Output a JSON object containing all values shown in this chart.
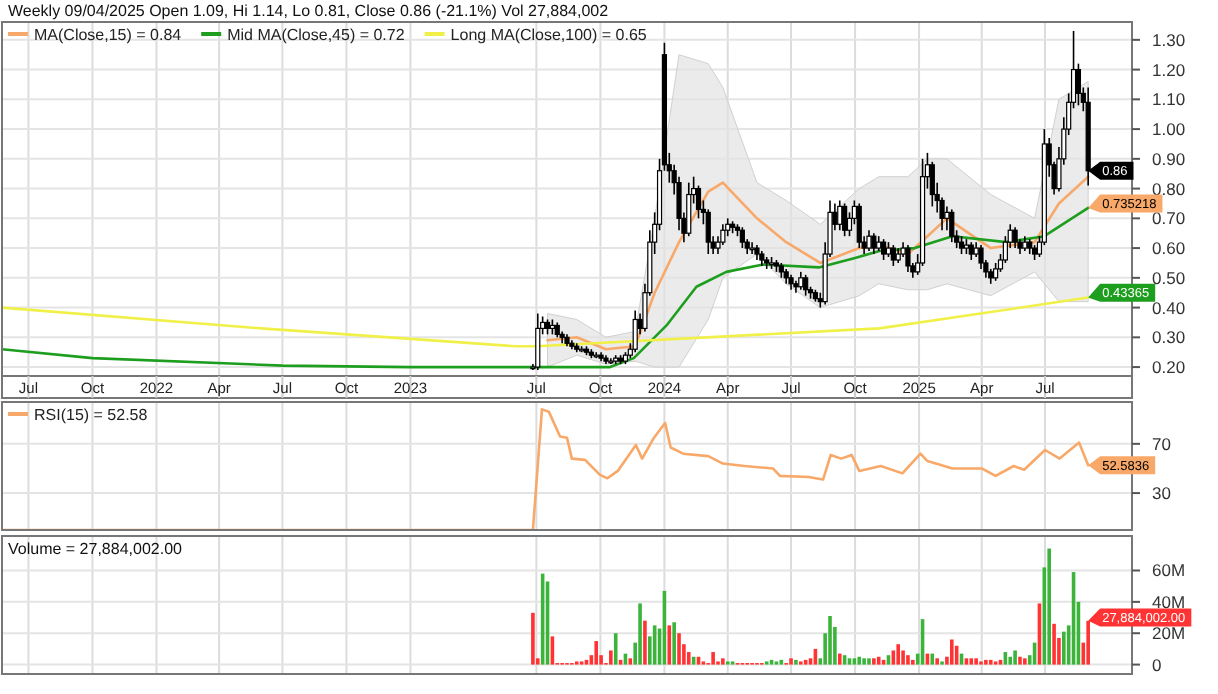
{
  "chart_data": [
    {
      "type": "candlestick",
      "title": "Weekly 09/04/2025 Open 1.09, Hi 1.14, Lo 0.81, Close 0.86 (-21.1%) Vol 27,884,002",
      "x": [
        "2023-06-26",
        "2023-07-03",
        "2023-07-10",
        "2023-07-17",
        "2023-07-24",
        "2023-07-31",
        "2023-08-07",
        "2023-08-14",
        "2023-08-21",
        "2023-08-28",
        "2023-09-04",
        "2023-09-11",
        "2023-09-18",
        "2023-09-25",
        "2023-10-02",
        "2023-10-09",
        "2023-10-16",
        "2023-10-23",
        "2023-10-30",
        "2023-11-06",
        "2023-11-13",
        "2023-11-20",
        "2023-11-27",
        "2023-12-04",
        "2023-12-11",
        "2023-12-18",
        "2023-12-25",
        "2024-01-01",
        "2024-01-08",
        "2024-01-15",
        "2024-01-22",
        "2024-01-29",
        "2024-02-05",
        "2024-02-12",
        "2024-02-19",
        "2024-02-26",
        "2024-03-04",
        "2024-03-11",
        "2024-03-18",
        "2024-03-25",
        "2024-04-01",
        "2024-04-08",
        "2024-04-15",
        "2024-04-22",
        "2024-04-29",
        "2024-05-06",
        "2024-05-13",
        "2024-05-20",
        "2024-05-27",
        "2024-06-03",
        "2024-06-10",
        "2024-06-17",
        "2024-06-24",
        "2024-07-01",
        "2024-07-08",
        "2024-07-15",
        "2024-07-22",
        "2024-07-29",
        "2024-08-05",
        "2024-08-12",
        "2024-08-19",
        "2024-08-26",
        "2024-09-02",
        "2024-09-09",
        "2024-09-16",
        "2024-09-23",
        "2024-09-30",
        "2024-10-07",
        "2024-10-14",
        "2024-10-21",
        "2024-10-28",
        "2024-11-04",
        "2024-11-11",
        "2024-11-18",
        "2024-11-25",
        "2024-12-02",
        "2024-12-09",
        "2024-12-16",
        "2024-12-23",
        "2024-12-30",
        "2025-01-06",
        "2025-01-13",
        "2025-01-20",
        "2025-01-27",
        "2025-02-03",
        "2025-02-10",
        "2025-02-17",
        "2025-02-24",
        "2025-03-03",
        "2025-03-10",
        "2025-03-17",
        "2025-03-24",
        "2025-03-31",
        "2025-04-07",
        "2025-04-14",
        "2025-04-21",
        "2025-04-28",
        "2025-05-05",
        "2025-05-12",
        "2025-05-19",
        "2025-05-26",
        "2025-06-02",
        "2025-06-09",
        "2025-06-16",
        "2025-06-23",
        "2025-06-30",
        "2025-07-07",
        "2025-07-14",
        "2025-07-21",
        "2025-07-28",
        "2025-08-04",
        "2025-08-11",
        "2025-08-18",
        "2025-08-25",
        "2025-09-01"
      ],
      "ohlc": [
        [
          0.2,
          0.21,
          0.19,
          0.2
        ],
        [
          0.2,
          0.38,
          0.19,
          0.33
        ],
        [
          0.33,
          0.37,
          0.31,
          0.35
        ],
        [
          0.35,
          0.36,
          0.31,
          0.33
        ],
        [
          0.33,
          0.36,
          0.31,
          0.34
        ],
        [
          0.34,
          0.35,
          0.3,
          0.31
        ],
        [
          0.31,
          0.32,
          0.28,
          0.3
        ],
        [
          0.3,
          0.31,
          0.27,
          0.28
        ],
        [
          0.28,
          0.29,
          0.26,
          0.27
        ],
        [
          0.27,
          0.28,
          0.25,
          0.26
        ],
        [
          0.26,
          0.27,
          0.25,
          0.26
        ],
        [
          0.26,
          0.27,
          0.24,
          0.25
        ],
        [
          0.25,
          0.26,
          0.23,
          0.24
        ],
        [
          0.24,
          0.25,
          0.23,
          0.24
        ],
        [
          0.24,
          0.25,
          0.22,
          0.23
        ],
        [
          0.23,
          0.24,
          0.21,
          0.22
        ],
        [
          0.22,
          0.23,
          0.21,
          0.22
        ],
        [
          0.22,
          0.24,
          0.21,
          0.23
        ],
        [
          0.23,
          0.24,
          0.21,
          0.22
        ],
        [
          0.22,
          0.25,
          0.21,
          0.24
        ],
        [
          0.24,
          0.28,
          0.23,
          0.26
        ],
        [
          0.26,
          0.39,
          0.25,
          0.36
        ],
        [
          0.36,
          0.38,
          0.31,
          0.33
        ],
        [
          0.33,
          0.48,
          0.32,
          0.45
        ],
        [
          0.45,
          0.66,
          0.44,
          0.62
        ],
        [
          0.62,
          0.72,
          0.58,
          0.68
        ],
        [
          0.68,
          0.9,
          0.66,
          0.86
        ],
        [
          1.25,
          1.29,
          0.86,
          0.88
        ],
        [
          0.88,
          0.92,
          0.82,
          0.86
        ],
        [
          0.86,
          0.88,
          0.78,
          0.82
        ],
        [
          0.82,
          0.84,
          0.66,
          0.7
        ],
        [
          0.7,
          0.72,
          0.62,
          0.65
        ],
        [
          0.65,
          0.82,
          0.64,
          0.78
        ],
        [
          0.78,
          0.84,
          0.75,
          0.8
        ],
        [
          0.8,
          0.81,
          0.7,
          0.73
        ],
        [
          0.73,
          0.76,
          0.68,
          0.72
        ],
        [
          0.72,
          0.73,
          0.58,
          0.62
        ],
        [
          0.62,
          0.64,
          0.58,
          0.6
        ],
        [
          0.6,
          0.64,
          0.58,
          0.62
        ],
        [
          0.62,
          0.68,
          0.61,
          0.66
        ],
        [
          0.66,
          0.7,
          0.64,
          0.68
        ],
        [
          0.68,
          0.69,
          0.65,
          0.67
        ],
        [
          0.67,
          0.68,
          0.64,
          0.66
        ],
        [
          0.66,
          0.67,
          0.6,
          0.62
        ],
        [
          0.62,
          0.63,
          0.58,
          0.6
        ],
        [
          0.6,
          0.62,
          0.58,
          0.6
        ],
        [
          0.6,
          0.61,
          0.56,
          0.58
        ],
        [
          0.58,
          0.59,
          0.54,
          0.56
        ],
        [
          0.56,
          0.57,
          0.53,
          0.55
        ],
        [
          0.55,
          0.57,
          0.53,
          0.55
        ],
        [
          0.55,
          0.56,
          0.52,
          0.54
        ],
        [
          0.54,
          0.55,
          0.5,
          0.52
        ],
        [
          0.52,
          0.53,
          0.48,
          0.5
        ],
        [
          0.5,
          0.51,
          0.46,
          0.48
        ],
        [
          0.48,
          0.49,
          0.45,
          0.47
        ],
        [
          0.47,
          0.52,
          0.46,
          0.5
        ],
        [
          0.5,
          0.51,
          0.44,
          0.46
        ],
        [
          0.46,
          0.47,
          0.43,
          0.45
        ],
        [
          0.45,
          0.46,
          0.42,
          0.43
        ],
        [
          0.43,
          0.45,
          0.4,
          0.42
        ],
        [
          0.42,
          0.62,
          0.41,
          0.58
        ],
        [
          0.58,
          0.76,
          0.57,
          0.72
        ],
        [
          0.72,
          0.75,
          0.66,
          0.68
        ],
        [
          0.68,
          0.76,
          0.66,
          0.74
        ],
        [
          0.74,
          0.75,
          0.64,
          0.66
        ],
        [
          0.66,
          0.72,
          0.64,
          0.7
        ],
        [
          0.7,
          0.76,
          0.68,
          0.74
        ],
        [
          0.74,
          0.75,
          0.6,
          0.62
        ],
        [
          0.62,
          0.64,
          0.58,
          0.6
        ],
        [
          0.6,
          0.66,
          0.59,
          0.64
        ],
        [
          0.64,
          0.65,
          0.58,
          0.6
        ],
        [
          0.6,
          0.64,
          0.59,
          0.62
        ],
        [
          0.62,
          0.63,
          0.56,
          0.58
        ],
        [
          0.58,
          0.62,
          0.57,
          0.6
        ],
        [
          0.6,
          0.61,
          0.54,
          0.56
        ],
        [
          0.56,
          0.6,
          0.55,
          0.58
        ],
        [
          0.58,
          0.62,
          0.57,
          0.6
        ],
        [
          0.6,
          0.61,
          0.52,
          0.54
        ],
        [
          0.54,
          0.55,
          0.5,
          0.52
        ],
        [
          0.52,
          0.58,
          0.51,
          0.55
        ],
        [
          0.55,
          0.9,
          0.54,
          0.84
        ],
        [
          0.84,
          0.92,
          0.8,
          0.88
        ],
        [
          0.88,
          0.89,
          0.74,
          0.78
        ],
        [
          0.78,
          0.82,
          0.72,
          0.76
        ],
        [
          0.76,
          0.77,
          0.66,
          0.7
        ],
        [
          0.7,
          0.74,
          0.66,
          0.72
        ],
        [
          0.72,
          0.73,
          0.62,
          0.64
        ],
        [
          0.64,
          0.66,
          0.6,
          0.62
        ],
        [
          0.62,
          0.64,
          0.58,
          0.6
        ],
        [
          0.6,
          0.63,
          0.58,
          0.61
        ],
        [
          0.61,
          0.62,
          0.56,
          0.58
        ],
        [
          0.58,
          0.62,
          0.57,
          0.6
        ],
        [
          0.6,
          0.61,
          0.53,
          0.55
        ],
        [
          0.55,
          0.56,
          0.5,
          0.52
        ],
        [
          0.52,
          0.53,
          0.48,
          0.5
        ],
        [
          0.5,
          0.55,
          0.49,
          0.53
        ],
        [
          0.53,
          0.58,
          0.52,
          0.56
        ],
        [
          0.56,
          0.64,
          0.55,
          0.62
        ],
        [
          0.62,
          0.68,
          0.6,
          0.66
        ],
        [
          0.66,
          0.67,
          0.6,
          0.62
        ],
        [
          0.62,
          0.63,
          0.58,
          0.6
        ],
        [
          0.6,
          0.64,
          0.59,
          0.62
        ],
        [
          0.62,
          0.63,
          0.58,
          0.6
        ],
        [
          0.6,
          0.61,
          0.56,
          0.58
        ],
        [
          0.58,
          0.64,
          0.57,
          0.62
        ],
        [
          0.62,
          1.0,
          0.61,
          0.95
        ],
        [
          0.95,
          0.97,
          0.84,
          0.88
        ],
        [
          0.88,
          0.89,
          0.78,
          0.8
        ],
        [
          0.8,
          0.94,
          0.79,
          0.9
        ],
        [
          0.9,
          1.04,
          0.88,
          1.0
        ],
        [
          1.0,
          1.12,
          0.98,
          1.09
        ],
        [
          1.09,
          1.33,
          1.07,
          1.2
        ],
        [
          1.2,
          1.22,
          1.08,
          1.12
        ],
        [
          1.12,
          1.14,
          1.06,
          1.09
        ],
        [
          1.09,
          1.14,
          0.81,
          0.86
        ]
      ],
      "series": [
        {
          "type": "line",
          "name": "MA(Close,15) = 0.84",
          "color": "#f8a868",
          "x": [
            "2023-07-17",
            "2023-08-28",
            "2023-10-09",
            "2023-11-20",
            "2023-12-18",
            "2024-01-22",
            "2024-03-04",
            "2024-03-25",
            "2024-05-13",
            "2024-06-24",
            "2024-08-12",
            "2024-10-07",
            "2024-11-04",
            "2024-12-16",
            "2025-01-13",
            "2025-02-10",
            "2025-04-14",
            "2025-06-16",
            "2025-07-21",
            "2025-09-01"
          ],
          "values": [
            0.29,
            0.3,
            0.26,
            0.27,
            0.45,
            0.62,
            0.79,
            0.82,
            0.7,
            0.62,
            0.55,
            0.6,
            0.61,
            0.58,
            0.64,
            0.7,
            0.6,
            0.62,
            0.75,
            0.84
          ],
          "upper": [
            0.38,
            0.36,
            0.3,
            0.32,
            0.7,
            1.25,
            1.22,
            1.14,
            0.82,
            0.76,
            0.68,
            0.8,
            0.84,
            0.84,
            0.9,
            0.9,
            0.78,
            0.7,
            1.1,
            1.16
          ],
          "lower": [
            0.2,
            0.24,
            0.21,
            0.22,
            0.2,
            0.2,
            0.36,
            0.5,
            0.58,
            0.48,
            0.4,
            0.44,
            0.48,
            0.46,
            0.46,
            0.48,
            0.44,
            0.52,
            0.42,
            0.42
          ]
        },
        {
          "type": "line",
          "name": "Mid MA(Close,45) = 0.72",
          "color": "#1e9e1e",
          "x": [
            "2021-05-24",
            "2021-10-01",
            "2022-07-01",
            "2023-01-01",
            "2023-10-15",
            "2023-11-18",
            "2024-01-04",
            "2024-02-16",
            "2024-03-30",
            "2024-05-22",
            "2024-08-10",
            "2024-10-01",
            "2024-11-05",
            "2024-12-26",
            "2025-02-18",
            "2025-05-06",
            "2025-06-30",
            "2025-09-01"
          ],
          "values": [
            0.26,
            0.23,
            0.205,
            0.2,
            0.2,
            0.23,
            0.34,
            0.47,
            0.52,
            0.545,
            0.535,
            0.567,
            0.59,
            0.6,
            0.64,
            0.62,
            0.64,
            0.735
          ]
        },
        {
          "type": "line",
          "name": "Long MA(Close,100) = 0.65",
          "color": "#f0f048",
          "x": [
            "2021-05-24",
            "2022-06-01",
            "2023-06-01",
            "2023-07-01",
            "2024-11-05",
            "2025-03-01",
            "2025-09-01"
          ],
          "values": [
            0.4,
            0.33,
            0.27,
            0.27,
            0.33,
            0.37,
            0.43365
          ]
        }
      ],
      "xlim": [
        "2021-05-24",
        "2025-11-03"
      ],
      "xticks": [
        {
          "value": "2021-07-01",
          "label": "Jul"
        },
        {
          "value": "2021-10-01",
          "label": "Oct"
        },
        {
          "value": "2022-01-01",
          "label": "2022"
        },
        {
          "value": "2022-04-01",
          "label": "Apr"
        },
        {
          "value": "2022-07-01",
          "label": "Jul"
        },
        {
          "value": "2022-10-01",
          "label": "Oct"
        },
        {
          "value": "2023-01-01",
          "label": "2023"
        },
        {
          "value": "2023-07-01",
          "label": "Jul"
        },
        {
          "value": "2023-10-01",
          "label": "Oct"
        },
        {
          "value": "2024-01-01",
          "label": "2024"
        },
        {
          "value": "2024-04-01",
          "label": "Apr"
        },
        {
          "value": "2024-07-01",
          "label": "Jul"
        },
        {
          "value": "2024-10-01",
          "label": "Oct"
        },
        {
          "value": "2025-01-01",
          "label": "2025"
        },
        {
          "value": "2025-04-01",
          "label": "Apr"
        },
        {
          "value": "2025-07-01",
          "label": "Jul"
        }
      ],
      "ylim": [
        0.17,
        1.36
      ],
      "yticks": [
        {
          "value": 0.2,
          "label": "0.20"
        },
        {
          "value": 0.3,
          "label": "0.30"
        },
        {
          "value": 0.4,
          "label": "0.40"
        },
        {
          "value": 0.5,
          "label": "0.50"
        },
        {
          "value": 0.6,
          "label": "0.60"
        },
        {
          "value": 0.7,
          "label": "0.70"
        },
        {
          "value": 0.8,
          "label": "0.80"
        },
        {
          "value": 0.9,
          "label": "0.90"
        },
        {
          "value": 1.0,
          "label": "1.00"
        },
        {
          "value": 1.1,
          "label": "1.10"
        },
        {
          "value": 1.2,
          "label": "1.20"
        },
        {
          "value": 1.3,
          "label": "1.30"
        }
      ],
      "grid": true,
      "legend": "top left",
      "annotations": [
        {
          "text": "0.86",
          "x": "2025-09-01",
          "y": 0.86
        },
        {
          "text": "0.735218",
          "x": "2025-09-01",
          "y": 0.735
        },
        {
          "text": "0.43365",
          "x": "2025-09-01",
          "y": 0.43365
        }
      ]
    },
    {
      "type": "line",
      "series": [
        {
          "name": "RSI(15) = 52.58",
          "color": "#f8a868",
          "x": [
            "2021-05-24",
            "2023-06-26",
            "2023-07-09",
            "2023-07-19",
            "2023-08-04",
            "2023-08-14",
            "2023-08-21",
            "2023-09-09",
            "2023-09-30",
            "2023-10-11",
            "2023-10-26",
            "2023-11-21",
            "2023-11-30",
            "2023-12-17",
            "2024-01-02",
            "2024-01-10",
            "2024-01-28",
            "2024-03-04",
            "2024-03-25",
            "2024-04-25",
            "2024-06-05",
            "2024-06-15",
            "2024-07-26",
            "2024-08-16",
            "2024-08-27",
            "2024-09-11",
            "2024-09-26",
            "2024-10-07",
            "2024-11-07",
            "2024-12-08",
            "2025-01-03",
            "2025-01-13",
            "2025-02-18",
            "2025-04-01",
            "2025-04-21",
            "2025-05-17",
            "2025-06-01",
            "2025-07-01",
            "2025-07-22",
            "2025-08-19",
            "2025-09-01"
          ],
          "values": [
            0,
            0,
            98,
            96,
            76,
            75,
            58,
            57,
            45,
            42,
            48,
            69,
            58,
            75,
            87,
            67,
            62,
            60,
            54,
            52,
            50,
            44,
            43,
            41,
            61,
            58,
            61,
            48,
            52,
            46,
            62,
            56,
            50,
            50,
            44,
            52,
            49,
            65,
            58,
            71,
            52.58
          ]
        }
      ],
      "xlim": [
        "2021-05-24",
        "2025-11-03"
      ],
      "xticks": [
        {
          "value": "2021-07-01",
          "label": null
        },
        {
          "value": "2021-10-01",
          "label": null
        },
        {
          "value": "2022-01-01",
          "label": null
        },
        {
          "value": "2022-04-01",
          "label": null
        },
        {
          "value": "2022-07-01",
          "label": null
        },
        {
          "value": "2022-10-01",
          "label": null
        },
        {
          "value": "2023-01-01",
          "label": null
        },
        {
          "value": "2023-07-01",
          "label": null
        },
        {
          "value": "2023-10-01",
          "label": null
        },
        {
          "value": "2024-01-01",
          "label": null
        },
        {
          "value": "2024-04-01",
          "label": null
        },
        {
          "value": "2024-07-01",
          "label": null
        },
        {
          "value": "2024-10-01",
          "label": null
        },
        {
          "value": "2025-01-01",
          "label": null
        },
        {
          "value": "2025-04-01",
          "label": null
        },
        {
          "value": "2025-07-01",
          "label": null
        }
      ],
      "ylim": [
        0,
        104
      ],
      "yticks": [
        30,
        70
      ],
      "grid": true,
      "tick_labels": "y",
      "legend": "top left",
      "annotations": [
        {
          "text": "52.5836",
          "x": "2025-09-01",
          "y": 52.58
        }
      ]
    },
    {
      "type": "bar",
      "title": "Volume = 27,884,002.00",
      "x": [
        "2023-06-26",
        "2023-07-03",
        "2023-07-10",
        "2023-07-17",
        "2023-07-24",
        "2023-07-31",
        "2023-08-07",
        "2023-08-14",
        "2023-08-21",
        "2023-08-28",
        "2023-09-04",
        "2023-09-11",
        "2023-09-18",
        "2023-09-25",
        "2023-10-02",
        "2023-10-09",
        "2023-10-16",
        "2023-10-23",
        "2023-10-30",
        "2023-11-06",
        "2023-11-13",
        "2023-11-20",
        "2023-11-27",
        "2023-12-04",
        "2023-12-11",
        "2023-12-18",
        "2023-12-25",
        "2024-01-01",
        "2024-01-08",
        "2024-01-15",
        "2024-01-22",
        "2024-01-29",
        "2024-02-05",
        "2024-02-12",
        "2024-02-19",
        "2024-02-26",
        "2024-03-04",
        "2024-03-11",
        "2024-03-18",
        "2024-03-25",
        "2024-04-01",
        "2024-04-08",
        "2024-04-15",
        "2024-04-22",
        "2024-04-29",
        "2024-05-06",
        "2024-05-13",
        "2024-05-20",
        "2024-05-27",
        "2024-06-03",
        "2024-06-10",
        "2024-06-17",
        "2024-06-24",
        "2024-07-01",
        "2024-07-08",
        "2024-07-15",
        "2024-07-22",
        "2024-07-29",
        "2024-08-05",
        "2024-08-12",
        "2024-08-19",
        "2024-08-26",
        "2024-09-02",
        "2024-09-09",
        "2024-09-16",
        "2024-09-23",
        "2024-09-30",
        "2024-10-07",
        "2024-10-14",
        "2024-10-21",
        "2024-10-28",
        "2024-11-04",
        "2024-11-11",
        "2024-11-18",
        "2024-11-25",
        "2024-12-02",
        "2024-12-09",
        "2024-12-16",
        "2024-12-23",
        "2024-12-30",
        "2025-01-06",
        "2025-01-13",
        "2025-01-20",
        "2025-01-27",
        "2025-02-03",
        "2025-02-10",
        "2025-02-17",
        "2025-02-24",
        "2025-03-03",
        "2025-03-10",
        "2025-03-17",
        "2025-03-24",
        "2025-03-31",
        "2025-04-07",
        "2025-04-14",
        "2025-04-21",
        "2025-04-28",
        "2025-05-05",
        "2025-05-12",
        "2025-05-19",
        "2025-05-26",
        "2025-06-02",
        "2025-06-09",
        "2025-06-16",
        "2025-06-23",
        "2025-06-30",
        "2025-07-07",
        "2025-07-14",
        "2025-07-21",
        "2025-07-28",
        "2025-08-04",
        "2025-08-11",
        "2025-08-18",
        "2025-08-25",
        "2025-09-01"
      ],
      "values": [
        33,
        4,
        58,
        53,
        18,
        1,
        1,
        1,
        1,
        2,
        2,
        3,
        6,
        15,
        6,
        1,
        9,
        20,
        3,
        7,
        4,
        14,
        39,
        28,
        18,
        25,
        23,
        47,
        25,
        27,
        20,
        13,
        8,
        5,
        5,
        2,
        1,
        8,
        2,
        4,
        2,
        2,
        1,
        1,
        1,
        1,
        1,
        1,
        2,
        3,
        2,
        3,
        1,
        4,
        3,
        2,
        3,
        4,
        10,
        4,
        20,
        31,
        24,
        7,
        6,
        4,
        4,
        5,
        4,
        4,
        4,
        5,
        3,
        6,
        9,
        13,
        9,
        6,
        3,
        7,
        29,
        7,
        7,
        4,
        2,
        5,
        16,
        12,
        7,
        4,
        4,
        4,
        2,
        3,
        3,
        2,
        3,
        8,
        5,
        9,
        5,
        4,
        6,
        14,
        39,
        62,
        74,
        26,
        17,
        21,
        25,
        59,
        40,
        14,
        27.884
      ],
      "colors": [
        "#ff3333",
        "#ff3333",
        "#3cb43c",
        "#3cb43c",
        "#ff3333",
        "#ff3333",
        "#ff3333",
        "#ff3333",
        "#ff3333",
        "#ff3333",
        "#ff3333",
        "#ff3333",
        "#ff3333",
        "#ff3333",
        "#ff3333",
        "#ff3333",
        "#ff3333",
        "#3cb43c",
        "#ff3333",
        "#3cb43c",
        "#ff3333",
        "#3cb43c",
        "#3cb43c",
        "#ff3333",
        "#3cb43c",
        "#3cb43c",
        "#3cb43c",
        "#3cb43c",
        "#ff3333",
        "#3cb43c",
        "#ff3333",
        "#ff3333",
        "#ff3333",
        "#3cb43c",
        "#ff3333",
        "#ff3333",
        "#ff3333",
        "#ff3333",
        "#ff3333",
        "#ff3333",
        "#3cb43c",
        "#3cb43c",
        "#ff3333",
        "#ff3333",
        "#ff3333",
        "#ff3333",
        "#ff3333",
        "#ff3333",
        "#3cb43c",
        "#3cb43c",
        "#3cb43c",
        "#3cb43c",
        "#ff3333",
        "#ff3333",
        "#3cb43c",
        "#ff3333",
        "#ff3333",
        "#ff3333",
        "#ff3333",
        "#3cb43c",
        "#3cb43c",
        "#3cb43c",
        "#3cb43c",
        "#ff3333",
        "#3cb43c",
        "#3cb43c",
        "#3cb43c",
        "#3cb43c",
        "#3cb43c",
        "#3cb43c",
        "#ff3333",
        "#ff3333",
        "#ff3333",
        "#3cb43c",
        "#ff3333",
        "#ff3333",
        "#ff3333",
        "#ff3333",
        "#ff3333",
        "#3cb43c",
        "#3cb43c",
        "#ff3333",
        "#3cb43c",
        "#ff3333",
        "#3cb43c",
        "#ff3333",
        "#ff3333",
        "#ff3333",
        "#3cb43c",
        "#ff3333",
        "#ff3333",
        "#ff3333",
        "#ff3333",
        "#ff3333",
        "#ff3333",
        "#ff3333",
        "#ff3333",
        "#3cb43c",
        "#3cb43c",
        "#3cb43c",
        "#ff3333",
        "#ff3333",
        "#3cb43c",
        "#3cb43c",
        "#ff3333",
        "#3cb43c",
        "#3cb43c",
        "#ff3333",
        "#ff3333",
        "#3cb43c",
        "#3cb43c",
        "#3cb43c",
        "#3cb43c",
        "#ff3333",
        "#ff3333"
      ],
      "xlim": [
        "2021-05-24",
        "2025-11-03"
      ],
      "xticks": [
        {
          "value": "2021-07-01",
          "label": null
        },
        {
          "value": "2021-10-01",
          "label": null
        },
        {
          "value": "2022-01-01",
          "label": null
        },
        {
          "value": "2022-04-01",
          "label": null
        },
        {
          "value": "2022-07-01",
          "label": null
        },
        {
          "value": "2022-10-01",
          "label": null
        },
        {
          "value": "2023-01-01",
          "label": null
        },
        {
          "value": "2023-07-01",
          "label": null
        },
        {
          "value": "2023-10-01",
          "label": null
        },
        {
          "value": "2024-01-01",
          "label": null
        },
        {
          "value": "2024-04-01",
          "label": null
        },
        {
          "value": "2024-07-01",
          "label": null
        },
        {
          "value": "2024-10-01",
          "label": null
        },
        {
          "value": "2025-01-01",
          "label": null
        },
        {
          "value": "2025-04-01",
          "label": null
        },
        {
          "value": "2025-07-01",
          "label": null
        }
      ],
      "ylim": [
        -6,
        82
      ],
      "yticks": [
        0,
        {
          "value": 20,
          "label": "20M"
        },
        {
          "value": 40,
          "label": "40M"
        },
        {
          "value": 60,
          "label": "60M"
        }
      ],
      "grid": true,
      "tick_labels": "y",
      "annotations": [
        {
          "text": "27,884,002.00",
          "x": "2025-09-01",
          "y": 27.884
        }
      ]
    }
  ]
}
